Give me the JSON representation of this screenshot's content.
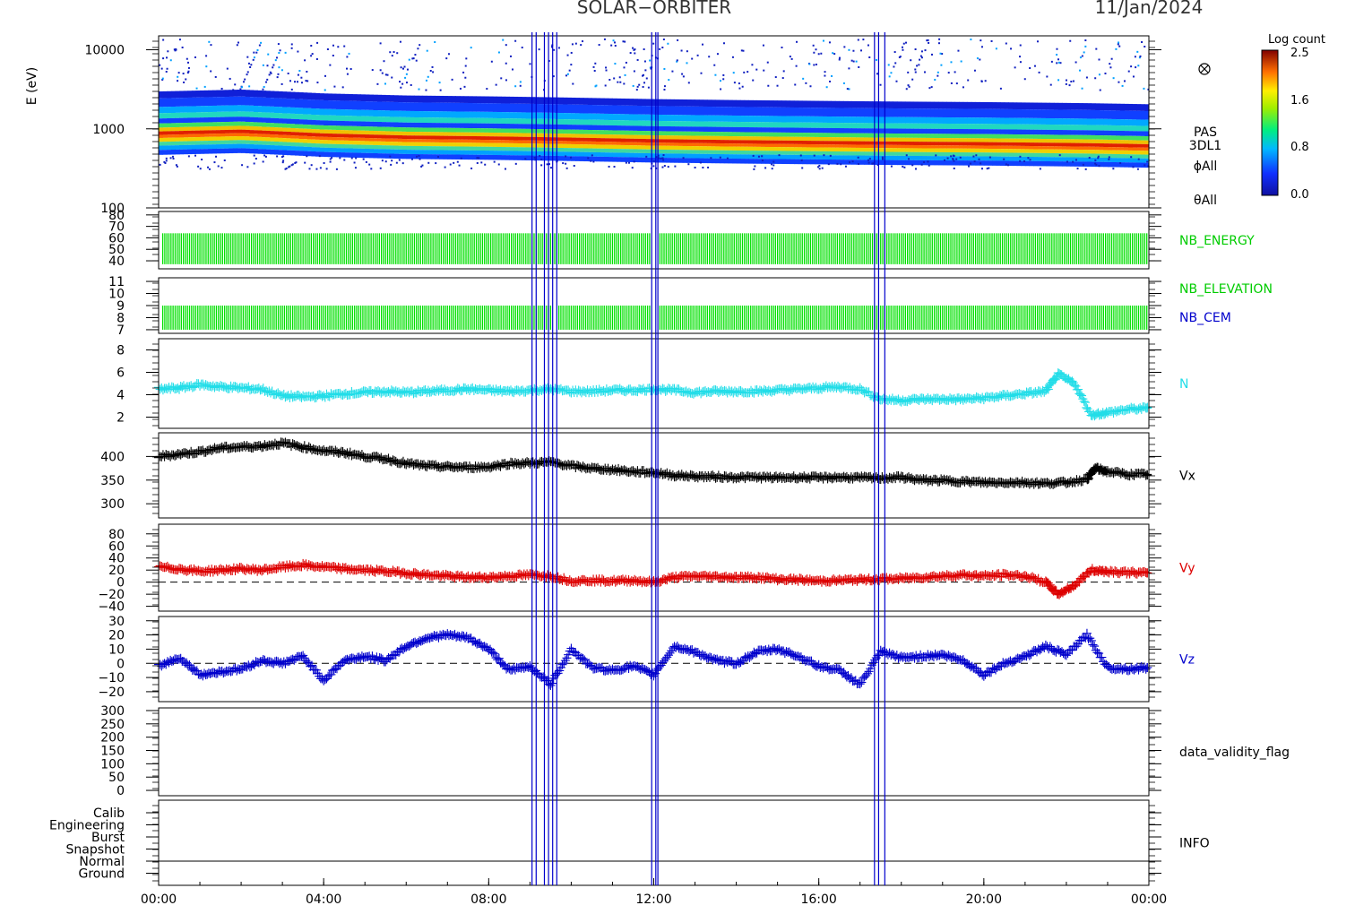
{
  "header": {
    "instrument": "SOLAR−ORBITER",
    "date": "11/Jan/2024"
  },
  "colorbar": {
    "title": "Log count",
    "ticks": [
      "2.5",
      "1.6",
      "0.8",
      "0.0"
    ]
  },
  "x_ticks": [
    "00:00",
    "04:00",
    "08:00",
    "12:00",
    "16:00",
    "20:00",
    "00:00"
  ],
  "event_marks": {
    "color": "#0000cc",
    "hours": [
      9.05,
      9.15,
      9.35,
      9.45,
      9.55,
      9.65,
      11.95,
      12.05,
      12.1,
      17.35,
      17.45,
      17.6
    ]
  },
  "panels": [
    {
      "id": "pas-spectrogram",
      "ylabel": "E (eV)",
      "y_ticks": [
        "10000",
        "1000",
        "100"
      ],
      "right_labels": [
        "PAS",
        "3DL1",
        "ϕAll",
        "θAll"
      ],
      "colors": {
        "label": "#000000"
      }
    },
    {
      "id": "nb-energy",
      "y_ticks": [
        "80",
        "70",
        "60",
        "50",
        "40"
      ],
      "right_labels": [
        "NB_ENERGY"
      ],
      "colors": {
        "trace": "#00e000",
        "label": "#00cc00"
      }
    },
    {
      "id": "nb-elevation",
      "y_ticks": [
        "11",
        "10",
        "9",
        "8",
        "7"
      ],
      "right_labels": [
        "NB_ELEVATION",
        "NB_CEM"
      ],
      "colors": {
        "trace": "#00e000",
        "label": "#00cc00",
        "label2": "#0000cc"
      }
    },
    {
      "id": "density",
      "y_ticks": [
        "8",
        "6",
        "4",
        "2"
      ],
      "right_labels": [
        "N"
      ],
      "colors": {
        "trace": "#22dde8",
        "label": "#22dde8"
      }
    },
    {
      "id": "vx",
      "y_ticks": [
        "400",
        "350",
        "300"
      ],
      "right_labels": [
        "Vx"
      ],
      "colors": {
        "trace": "#000000",
        "label": "#000000"
      }
    },
    {
      "id": "vy",
      "y_ticks": [
        "80",
        "60",
        "40",
        "20",
        "0",
        "−20",
        "−40"
      ],
      "right_labels": [
        "Vy"
      ],
      "colors": {
        "trace": "#dd0000",
        "label": "#dd0000"
      }
    },
    {
      "id": "vz",
      "y_ticks": [
        "30",
        "20",
        "10",
        "0",
        "−10",
        "−20"
      ],
      "right_labels": [
        "Vz"
      ],
      "colors": {
        "trace": "#0000cc",
        "label": "#0000cc"
      }
    },
    {
      "id": "validity",
      "y_ticks": [
        "300",
        "250",
        "200",
        "150",
        "100",
        "50",
        "0"
      ],
      "right_labels": [
        "data_validity_flag"
      ],
      "colors": {
        "label": "#000000"
      }
    },
    {
      "id": "info",
      "y_ticks": [
        "Calib",
        "Engineering",
        "Burst",
        "Snapshot",
        "Normal",
        "Ground"
      ],
      "right_labels": [
        "INFO"
      ],
      "colors": {
        "label": "#000000"
      }
    }
  ],
  "chart_data": [
    {
      "type": "heatmap",
      "panel": "pas-spectrogram",
      "ylabel": "E (eV)",
      "yscale": "log",
      "ylim": [
        100,
        15000
      ],
      "xlim_hours": [
        0,
        24
      ],
      "colorbar_range": [
        0.0,
        2.5
      ],
      "peak_energy_ev": {
        "x_hours": [
          0,
          2,
          4,
          6,
          8,
          9.5,
          12,
          14,
          16.5,
          18,
          20,
          22.5,
          24
        ],
        "values": [
          900,
          950,
          850,
          800,
          780,
          760,
          720,
          700,
          680,
          670,
          660,
          640,
          620
        ]
      }
    },
    {
      "type": "bar",
      "panel": "nb-energy",
      "ylim": [
        33,
        83
      ],
      "band": [
        37,
        64
      ],
      "gap_hours": [
        [
          11.95,
          12.15
        ]
      ]
    },
    {
      "type": "bar",
      "panel": "nb-elevation",
      "ylim": [
        6.7,
        11.3
      ],
      "band": [
        7,
        9
      ],
      "gap_hours": [
        [
          9.55,
          9.7
        ],
        [
          11.95,
          12.15
        ]
      ]
    },
    {
      "type": "scatter",
      "panel": "density",
      "ylim": [
        1,
        9
      ],
      "x": [
        0,
        0.5,
        1,
        1.5,
        2,
        2.5,
        3,
        3.5,
        4,
        4.5,
        5,
        5.5,
        6,
        6.5,
        7,
        7.5,
        8,
        8.5,
        9,
        9.5,
        10,
        10.5,
        11,
        11.5,
        12,
        12.5,
        13,
        13.5,
        14,
        14.5,
        15,
        15.5,
        16,
        16.5,
        17,
        17.5,
        18,
        18.5,
        19,
        19.5,
        20,
        20.5,
        21,
        21.5,
        21.8,
        22.2,
        22.6,
        23,
        23.5,
        24
      ],
      "y": [
        4.5,
        4.6,
        4.9,
        4.7,
        4.6,
        4.5,
        3.9,
        3.8,
        3.9,
        4.1,
        4.2,
        4.3,
        4.2,
        4.3,
        4.4,
        4.5,
        4.4,
        4.3,
        4.4,
        4.5,
        4.3,
        4.3,
        4.4,
        4.4,
        4.5,
        4.4,
        4.2,
        4.3,
        4.3,
        4.3,
        4.4,
        4.5,
        4.6,
        4.7,
        4.5,
        3.6,
        3.5,
        3.6,
        3.6,
        3.6,
        3.7,
        3.9,
        4.1,
        4.3,
        5.8,
        5.0,
        2.2,
        2.4,
        2.7,
        2.8
      ]
    },
    {
      "type": "scatter",
      "panel": "vx",
      "ylim": [
        270,
        450
      ],
      "x": [
        0,
        0.5,
        1,
        1.5,
        2,
        2.5,
        3,
        3.5,
        4,
        4.5,
        5,
        5.5,
        6,
        6.5,
        7,
        7.5,
        8,
        8.5,
        9,
        9.5,
        10,
        10.5,
        11,
        11.5,
        12,
        12.5,
        13,
        13.5,
        14,
        14.5,
        15,
        15.5,
        16,
        16.5,
        17,
        17.5,
        18,
        18.5,
        19,
        19.5,
        20,
        20.5,
        21,
        21.5,
        22,
        22.5,
        22.7,
        23,
        23.5,
        24
      ],
      "y": [
        400,
        405,
        410,
        418,
        420,
        422,
        428,
        420,
        412,
        408,
        400,
        395,
        385,
        380,
        378,
        377,
        378,
        385,
        386,
        388,
        380,
        375,
        372,
        368,
        366,
        360,
        358,
        357,
        356,
        356,
        355,
        356,
        355,
        356,
        355,
        354,
        356,
        350,
        349,
        347,
        345,
        345,
        345,
        343,
        345,
        352,
        375,
        368,
        362,
        362
      ]
    },
    {
      "type": "scatter",
      "panel": "vy",
      "ylim": [
        -48,
        96
      ],
      "x": [
        0,
        0.5,
        1,
        1.5,
        2,
        2.5,
        3,
        3.5,
        4,
        4.5,
        5,
        5.5,
        6,
        6.5,
        7,
        7.5,
        8,
        8.5,
        9,
        9.5,
        10,
        10.5,
        11,
        11.5,
        12,
        12.5,
        13,
        13.5,
        14,
        14.5,
        15,
        15.5,
        16,
        16.5,
        17,
        17.5,
        18,
        18.5,
        19,
        19.5,
        20,
        20.5,
        21,
        21.5,
        21.8,
        22.2,
        22.6,
        23,
        23.5,
        24
      ],
      "y": [
        25,
        22,
        18,
        20,
        22,
        20,
        25,
        28,
        25,
        22,
        20,
        18,
        15,
        12,
        10,
        8,
        8,
        10,
        12,
        10,
        2,
        3,
        2,
        3,
        0,
        8,
        10,
        9,
        8,
        8,
        5,
        4,
        2,
        3,
        4,
        5,
        6,
        8,
        10,
        12,
        10,
        12,
        10,
        0,
        -20,
        -5,
        20,
        18,
        16,
        15
      ]
    },
    {
      "type": "scatter",
      "panel": "vz",
      "ylim": [
        -27,
        33
      ],
      "x": [
        0,
        0.5,
        1,
        1.5,
        2,
        2.5,
        3,
        3.5,
        4,
        4.5,
        5,
        5.5,
        6,
        6.5,
        7,
        7.5,
        8,
        8.5,
        9,
        9.5,
        10,
        10.5,
        11,
        11.5,
        12,
        12.5,
        13,
        13.5,
        14,
        14.5,
        15,
        15.5,
        16,
        16.5,
        17,
        17.5,
        18,
        18.5,
        19,
        19.5,
        20,
        20.5,
        21,
        21.5,
        22,
        22.5,
        23,
        23.5,
        24
      ],
      "y": [
        -2,
        4,
        -8,
        -6,
        -4,
        2,
        0,
        5,
        -12,
        2,
        5,
        2,
        12,
        18,
        20,
        18,
        10,
        -5,
        -2,
        -15,
        10,
        -3,
        -5,
        -2,
        -8,
        12,
        8,
        2,
        0,
        8,
        10,
        5,
        -2,
        -5,
        -15,
        8,
        4,
        5,
        6,
        2,
        -8,
        0,
        5,
        12,
        6,
        20,
        -3,
        -4,
        -3
      ]
    },
    {
      "type": "scatter",
      "panel": "validity",
      "ylim": [
        -20,
        310
      ],
      "x": [],
      "y": []
    },
    {
      "type": "table",
      "panel": "info",
      "levels": [
        "Calib",
        "Engineering",
        "Burst",
        "Snapshot",
        "Normal",
        "Ground"
      ],
      "normal_level_line": true
    }
  ]
}
